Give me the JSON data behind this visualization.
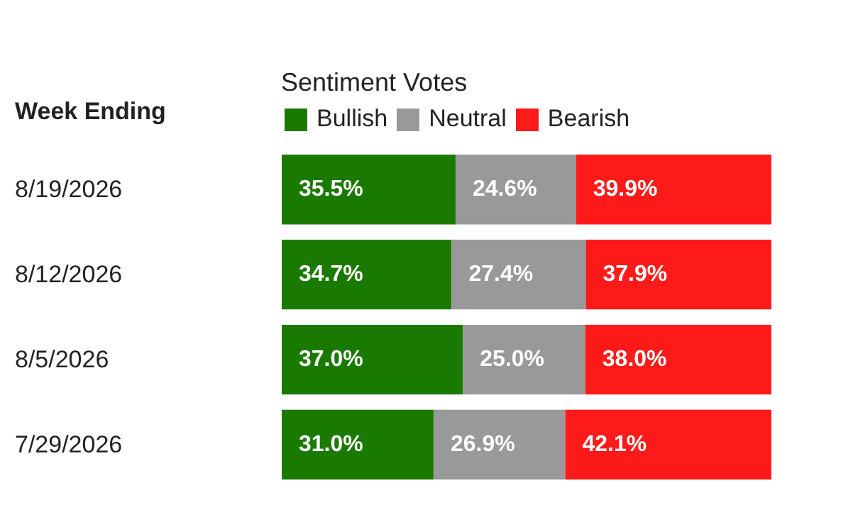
{
  "chart_data": {
    "type": "bar",
    "orientation": "horizontal",
    "stacked": true,
    "ylabel": "Week Ending",
    "legend_title": "Sentiment Votes",
    "legend": "top left",
    "tick_labels": "y",
    "categories": [
      "8/19/2026",
      "8/12/2026",
      "8/5/2026",
      "7/29/2026"
    ],
    "series": [
      {
        "name": "Bullish",
        "color": "#1a7a00",
        "values": [
          35.5,
          34.7,
          37.0,
          31.0
        ],
        "value_labels": [
          "35.5%",
          "34.7%",
          "37.0%",
          "31.0%"
        ]
      },
      {
        "name": "Neutral",
        "color": "#999999",
        "values": [
          24.6,
          27.4,
          25.0,
          26.9
        ],
        "value_labels": [
          "24.6%",
          "27.4%",
          "25.0%",
          "26.9%"
        ]
      },
      {
        "name": "Bearish",
        "color": "#ff1a1a",
        "values": [
          39.9,
          37.9,
          38.0,
          42.1
        ],
        "value_labels": [
          "39.9%",
          "37.9%",
          "38.0%",
          "42.1%"
        ]
      }
    ]
  }
}
